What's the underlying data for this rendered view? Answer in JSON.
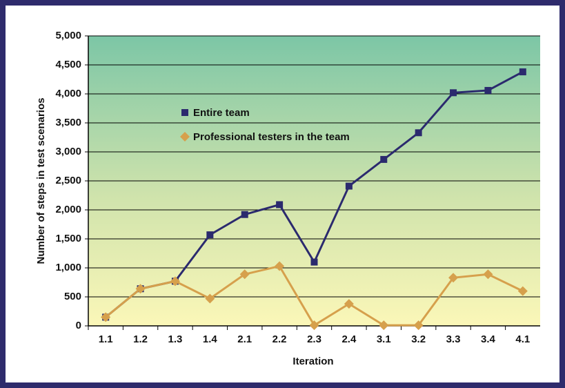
{
  "chart_data": {
    "type": "line",
    "xlabel": "Iteration",
    "ylabel": "Number of steps in test scenarios",
    "categories": [
      "1.1",
      "1.2",
      "1.3",
      "1.4",
      "2.1",
      "2.2",
      "2.3",
      "2.4",
      "3.1",
      "3.2",
      "3.3",
      "3.4",
      "4.1"
    ],
    "series": [
      {
        "name": "Entire team",
        "color": "#2b2a6e",
        "marker": "square",
        "values": [
          150,
          640,
          770,
          1570,
          1920,
          2090,
          1100,
          2410,
          2870,
          3330,
          4020,
          4060,
          4380
        ]
      },
      {
        "name": "Professional testers in the team",
        "color": "#d6a04c",
        "marker": "diamond",
        "values": [
          150,
          640,
          770,
          470,
          890,
          1030,
          10,
          380,
          10,
          10,
          830,
          890,
          600
        ]
      }
    ],
    "ylim": [
      0,
      5000
    ],
    "yticks": [
      0,
      500,
      {
        "value": 1000,
        "label": "1,000"
      },
      {
        "value": 1500,
        "label": "1,500"
      },
      {
        "value": 2000,
        "label": "2,000"
      },
      {
        "value": 2500,
        "label": "2,500"
      },
      {
        "value": 3000,
        "label": "3,000"
      },
      {
        "value": 3500,
        "label": "3,500"
      },
      {
        "value": 4000,
        "label": "4,000"
      },
      {
        "value": 4500,
        "label": "4,500"
      },
      {
        "value": 5000,
        "label": "5,000"
      }
    ],
    "grid": true,
    "legend": "upper left"
  }
}
